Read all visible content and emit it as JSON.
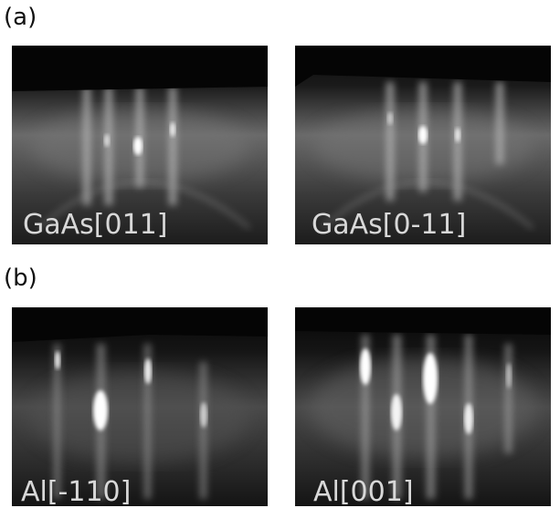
{
  "panels": [
    {
      "label": "(a)",
      "images": [
        {
          "caption": "GaAs[011]"
        },
        {
          "caption": "GaAs[0-11]"
        }
      ]
    },
    {
      "label": "(b)",
      "images": [
        {
          "caption": "Al[-110]"
        },
        {
          "caption": "Al[001]"
        }
      ]
    }
  ]
}
